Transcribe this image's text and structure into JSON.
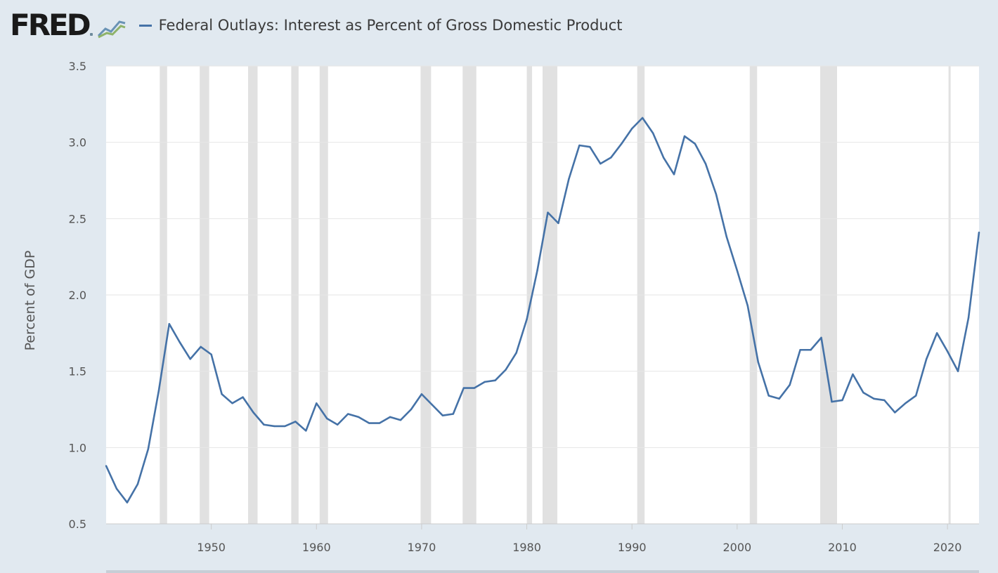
{
  "brand": {
    "name": "FRED"
  },
  "chart_data": {
    "type": "line",
    "title": "Federal Outlays: Interest as Percent of Gross Domestic Product",
    "xlabel": "",
    "ylabel": "Percent of GDP",
    "xlim": [
      1940,
      2023
    ],
    "ylim": [
      0.5,
      3.5
    ],
    "yticks": [
      0.5,
      1.0,
      1.5,
      2.0,
      2.5,
      3.0,
      3.5
    ],
    "ytick_labels": [
      "0.5",
      "1.0",
      "1.5",
      "2.0",
      "2.5",
      "3.0",
      "3.5"
    ],
    "xticks": [
      1950,
      1960,
      1970,
      1980,
      1990,
      2000,
      2010,
      2020
    ],
    "xtick_labels": [
      "1950",
      "1960",
      "1970",
      "1980",
      "1990",
      "2000",
      "2010",
      "2020"
    ],
    "grid": true,
    "line_color": "#4572a7",
    "recessions": [
      [
        1945.1,
        1945.8
      ],
      [
        1948.9,
        1949.8
      ],
      [
        1953.5,
        1954.4
      ],
      [
        1957.6,
        1958.3
      ],
      [
        1960.3,
        1961.1
      ],
      [
        1969.9,
        1970.9
      ],
      [
        1973.9,
        1975.2
      ],
      [
        1980.0,
        1980.5
      ],
      [
        1981.5,
        1982.9
      ],
      [
        1990.5,
        1991.2
      ],
      [
        2001.2,
        2001.9
      ],
      [
        2007.9,
        2009.5
      ],
      [
        2020.1,
        2020.3
      ]
    ],
    "series": [
      {
        "name": "Federal Outlays: Interest as Percent of Gross Domestic Product",
        "x": [
          1940,
          1941,
          1942,
          1943,
          1944,
          1945,
          1946,
          1947,
          1948,
          1949,
          1950,
          1951,
          1952,
          1953,
          1954,
          1955,
          1956,
          1957,
          1958,
          1959,
          1960,
          1961,
          1962,
          1963,
          1964,
          1965,
          1966,
          1967,
          1968,
          1969,
          1970,
          1971,
          1972,
          1973,
          1974,
          1975,
          1976,
          1977,
          1978,
          1979,
          1980,
          1981,
          1982,
          1983,
          1984,
          1985,
          1986,
          1987,
          1988,
          1989,
          1990,
          1991,
          1992,
          1993,
          1994,
          1995,
          1996,
          1997,
          1998,
          1999,
          2000,
          2001,
          2002,
          2003,
          2004,
          2005,
          2006,
          2007,
          2008,
          2009,
          2010,
          2011,
          2012,
          2013,
          2014,
          2015,
          2016,
          2017,
          2018,
          2019,
          2020,
          2021,
          2022,
          2023
        ],
        "values": [
          0.88,
          0.73,
          0.64,
          0.76,
          0.99,
          1.37,
          1.81,
          1.69,
          1.58,
          1.66,
          1.61,
          1.35,
          1.29,
          1.33,
          1.23,
          1.15,
          1.14,
          1.14,
          1.17,
          1.11,
          1.29,
          1.19,
          1.15,
          1.22,
          1.2,
          1.16,
          1.16,
          1.2,
          1.18,
          1.25,
          1.35,
          1.28,
          1.21,
          1.22,
          1.39,
          1.39,
          1.43,
          1.44,
          1.51,
          1.62,
          1.84,
          2.16,
          2.54,
          2.47,
          2.76,
          2.98,
          2.97,
          2.86,
          2.9,
          2.99,
          3.09,
          3.16,
          3.06,
          2.9,
          2.79,
          3.04,
          2.99,
          2.86,
          2.66,
          2.38,
          2.16,
          1.93,
          1.56,
          1.34,
          1.32,
          1.41,
          1.64,
          1.64,
          1.72,
          1.3,
          1.31,
          1.48,
          1.36,
          1.32,
          1.31,
          1.23,
          1.29,
          1.34,
          1.58,
          1.75,
          1.63,
          1.5,
          1.85,
          2.41
        ]
      }
    ]
  }
}
